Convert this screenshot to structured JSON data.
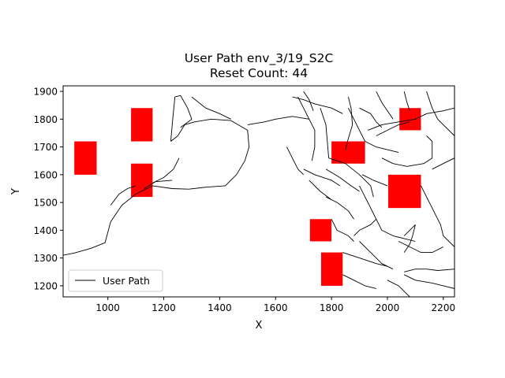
{
  "chart_data": {
    "type": "line",
    "title": "User Path env_3/19_S2C",
    "subtitle": "Reset Count: 44",
    "xlabel": "X",
    "ylabel": "Y",
    "xlim": [
      840,
      2240
    ],
    "ylim": [
      1160,
      1920
    ],
    "xticks": [
      1000,
      1200,
      1400,
      1600,
      1800,
      2000,
      2200
    ],
    "yticks": [
      1200,
      1300,
      1400,
      1500,
      1600,
      1700,
      1800,
      1900
    ],
    "legend": {
      "position": "lower-left",
      "entries": [
        "User Path"
      ]
    },
    "grid": false,
    "colors": {
      "path": "#000000",
      "obstacle": "#ff0000"
    },
    "obstacles": [
      {
        "x0": 880,
        "x1": 960,
        "y0": 1600,
        "y1": 1720
      },
      {
        "x0": 1083,
        "x1": 1160,
        "y0": 1720,
        "y1": 1840
      },
      {
        "x0": 1083,
        "x1": 1160,
        "y0": 1520,
        "y1": 1640
      },
      {
        "x0": 1800,
        "x1": 1920,
        "y0": 1640,
        "y1": 1720
      },
      {
        "x0": 2043,
        "x1": 2120,
        "y0": 1760,
        "y1": 1840
      },
      {
        "x0": 2003,
        "x1": 2120,
        "y0": 1480,
        "y1": 1600
      },
      {
        "x0": 1723,
        "x1": 1800,
        "y0": 1360,
        "y1": 1440
      },
      {
        "x0": 1763,
        "x1": 1840,
        "y0": 1200,
        "y1": 1320
      }
    ],
    "series": [
      {
        "name": "User Path",
        "segments": [
          [
            [
              840,
              1310
            ],
            [
              880,
              1318
            ],
            [
              940,
              1335
            ],
            [
              990,
              1355
            ],
            [
              1010,
              1430
            ],
            [
              1050,
              1490
            ],
            [
              1100,
              1530
            ],
            [
              1160,
              1560
            ],
            [
              1230,
              1550
            ],
            [
              1290,
              1548
            ],
            [
              1350,
              1555
            ],
            [
              1420,
              1560
            ],
            [
              1460,
              1600
            ],
            [
              1490,
              1650
            ],
            [
              1505,
              1700
            ],
            [
              1500,
              1760
            ],
            [
              1440,
              1795
            ],
            [
              1370,
              1800
            ],
            [
              1310,
              1790
            ],
            [
              1275,
              1780
            ],
            [
              1250,
              1740
            ],
            [
              1225,
              1720
            ]
          ],
          [
            [
              1225,
              1720
            ],
            [
              1232,
              1800
            ],
            [
              1240,
              1880
            ],
            [
              1260,
              1885
            ]
          ],
          [
            [
              1260,
              1885
            ],
            [
              1285,
              1840
            ],
            [
              1300,
              1800
            ],
            [
              1260,
              1770
            ]
          ],
          [
            [
              1160,
              1570
            ],
            [
              1200,
              1590
            ],
            [
              1235,
              1620
            ],
            [
              1255,
              1660
            ]
          ],
          [
            [
              1130,
              1550
            ],
            [
              1170,
              1575
            ],
            [
              1230,
              1580
            ]
          ],
          [
            [
              1010,
              1490
            ],
            [
              1040,
              1530
            ],
            [
              1070,
              1550
            ],
            [
              1100,
              1560
            ]
          ],
          [
            [
              1300,
              1880
            ],
            [
              1350,
              1840
            ],
            [
              1400,
              1820
            ],
            [
              1440,
              1800
            ]
          ],
          [
            [
              1500,
              1780
            ],
            [
              1560,
              1790
            ],
            [
              1600,
              1800
            ],
            [
              1660,
              1810
            ],
            [
              1720,
              1800
            ]
          ],
          [
            [
              1680,
              1880
            ],
            [
              1700,
              1840
            ],
            [
              1720,
              1800
            ],
            [
              1740,
              1760
            ],
            [
              1740,
              1700
            ],
            [
              1730,
              1650
            ]
          ],
          [
            [
              1660,
              1880
            ],
            [
              1700,
              1870
            ],
            [
              1740,
              1855
            ],
            [
              1800,
              1840
            ],
            [
              1840,
              1820
            ]
          ],
          [
            [
              1700,
              1900
            ],
            [
              1720,
              1870
            ],
            [
              1735,
              1830
            ]
          ],
          [
            [
              1760,
              1840
            ],
            [
              1780,
              1780
            ],
            [
              1785,
              1720
            ],
            [
              1790,
              1660
            ]
          ],
          [
            [
              1790,
              1660
            ],
            [
              1850,
              1640
            ],
            [
              1900,
              1600
            ],
            [
              1940,
              1560
            ],
            [
              1950,
              1520
            ]
          ],
          [
            [
              1780,
              1620
            ],
            [
              1830,
              1590
            ],
            [
              1870,
              1560
            ],
            [
              1900,
              1540
            ]
          ],
          [
            [
              1700,
              1620
            ],
            [
              1740,
              1600
            ],
            [
              1800,
              1580
            ],
            [
              1830,
              1560
            ]
          ],
          [
            [
              1720,
              1580
            ],
            [
              1760,
              1540
            ],
            [
              1800,
              1510
            ]
          ],
          [
            [
              1860,
              1880
            ],
            [
              1870,
              1840
            ],
            [
              1875,
              1780
            ],
            [
              1860,
              1730
            ],
            [
              1850,
              1690
            ]
          ],
          [
            [
              1860,
              1840
            ],
            [
              1880,
              1800
            ],
            [
              1900,
              1760
            ],
            [
              1920,
              1720
            ]
          ],
          [
            [
              1900,
              1840
            ],
            [
              1940,
              1820
            ],
            [
              1960,
              1790
            ],
            [
              1980,
              1770
            ]
          ],
          [
            [
              1930,
              1760
            ],
            [
              1980,
              1780
            ],
            [
              2040,
              1790
            ],
            [
              2100,
              1800
            ],
            [
              2140,
              1820
            ],
            [
              2200,
              1830
            ],
            [
              2240,
              1840
            ]
          ],
          [
            [
              1960,
              1740
            ],
            [
              2000,
              1760
            ],
            [
              2040,
              1780
            ],
            [
              2080,
              1790
            ]
          ],
          [
            [
              2060,
              1900
            ],
            [
              2070,
              1860
            ],
            [
              2080,
              1830
            ]
          ],
          [
            [
              2140,
              1900
            ],
            [
              2150,
              1870
            ],
            [
              2160,
              1840
            ],
            [
              2180,
              1800
            ],
            [
              2200,
              1780
            ],
            [
              2240,
              1740
            ]
          ],
          [
            [
              1960,
              1900
            ],
            [
              1980,
              1860
            ],
            [
              2000,
              1830
            ],
            [
              2020,
              1800
            ]
          ],
          [
            [
              1920,
              1720
            ],
            [
              1960,
              1700
            ],
            [
              2000,
              1690
            ],
            [
              2040,
              1680
            ]
          ],
          [
            [
              1980,
              1660
            ],
            [
              2020,
              1640
            ],
            [
              2070,
              1630
            ],
            [
              2130,
              1640
            ],
            [
              2160,
              1660
            ],
            [
              2160,
              1720
            ],
            [
              2140,
              1740
            ]
          ],
          [
            [
              2160,
              1620
            ],
            [
              2200,
              1640
            ],
            [
              2240,
              1660
            ]
          ],
          [
            [
              1910,
              1600
            ],
            [
              1950,
              1580
            ],
            [
              2000,
              1560
            ]
          ],
          [
            [
              1900,
              1560
            ],
            [
              1930,
              1500
            ],
            [
              1960,
              1440
            ],
            [
              1980,
              1400
            ]
          ],
          [
            [
              1960,
              1440
            ],
            [
              1940,
              1420
            ],
            [
              1900,
              1400
            ],
            [
              1880,
              1380
            ]
          ],
          [
            [
              1980,
              1400
            ],
            [
              2020,
              1380
            ],
            [
              2060,
              1370
            ],
            [
              2100,
              1360
            ]
          ],
          [
            [
              2120,
              1560
            ],
            [
              2150,
              1500
            ],
            [
              2170,
              1460
            ],
            [
              2190,
              1420
            ],
            [
              2200,
              1380
            ],
            [
              2240,
              1340
            ]
          ],
          [
            [
              2040,
              1360
            ],
            [
              2080,
              1340
            ],
            [
              2120,
              1320
            ],
            [
              2160,
              1320
            ],
            [
              2200,
              1340
            ]
          ],
          [
            [
              2060,
              1380
            ],
            [
              2080,
              1400
            ],
            [
              2100,
              1420
            ]
          ],
          [
            [
              2100,
              1420
            ],
            [
              2090,
              1380
            ],
            [
              2080,
              1350
            ],
            [
              2060,
              1320
            ]
          ],
          [
            [
              1840,
              1320
            ],
            [
              1900,
              1300
            ],
            [
              1960,
              1280
            ],
            [
              2000,
              1270
            ]
          ],
          [
            [
              1900,
              1360
            ],
            [
              1940,
              1320
            ],
            [
              1980,
              1280
            ],
            [
              2020,
              1260
            ]
          ],
          [
            [
              1840,
              1240
            ],
            [
              1880,
              1220
            ],
            [
              1920,
              1200
            ],
            [
              1960,
              1190
            ]
          ],
          [
            [
              2000,
              1220
            ],
            [
              2040,
              1200
            ],
            [
              2060,
              1180
            ],
            [
              2080,
              1160
            ]
          ],
          [
            [
              2060,
              1240
            ],
            [
              2100,
              1220
            ],
            [
              2160,
              1210
            ],
            [
              2200,
              1200
            ],
            [
              2240,
              1190
            ]
          ],
          [
            [
              2060,
              1250
            ],
            [
              2100,
              1260
            ],
            [
              2140,
              1260
            ],
            [
              2180,
              1255
            ],
            [
              2240,
              1260
            ]
          ],
          [
            [
              1800,
              1440
            ],
            [
              1820,
              1400
            ],
            [
              1860,
              1380
            ],
            [
              1880,
              1360
            ]
          ],
          [
            [
              1780,
              1520
            ],
            [
              1820,
              1500
            ],
            [
              1860,
              1470
            ],
            [
              1880,
              1440
            ]
          ],
          [
            [
              1640,
              1700
            ],
            [
              1660,
              1660
            ],
            [
              1680,
              1620
            ],
            [
              1700,
              1600
            ]
          ]
        ]
      }
    ]
  }
}
